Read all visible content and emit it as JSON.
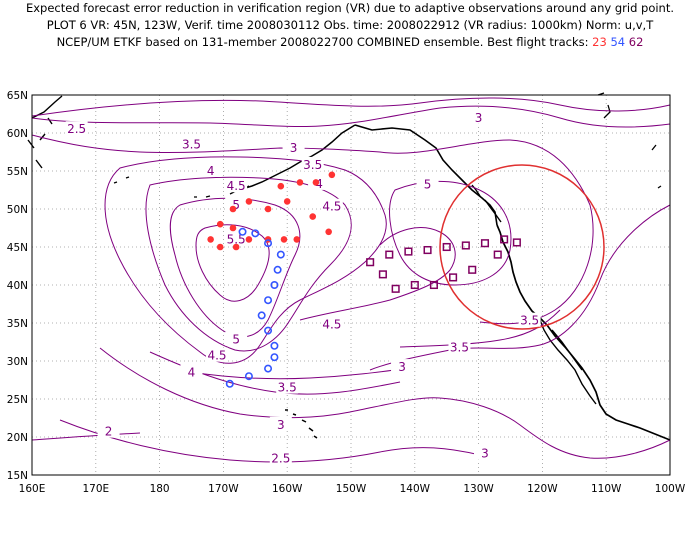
{
  "header": {
    "line1": "Expected forecast error reduction in verification region (VR) due to adaptive observations around any grid point.",
    "line2": "PLOT 6 VR: 45N, 123W, Verif. time 2008030112 Obs. time: 2008022912 (VR radius: 1000km) Norm: u,v,T",
    "line3_prefix": "NCEP/UM ETKF based on 131-member 2008022700 COMBINED ensemble.  Best flight tracks:",
    "tracks": [
      {
        "label": "23",
        "color": "#ff3333"
      },
      {
        "label": "54",
        "color": "#3355ff"
      },
      {
        "label": "62",
        "color": "#800060"
      }
    ]
  },
  "colors": {
    "contour": "#800080",
    "coast": "#000000",
    "grid": "#999999",
    "vr_circle": "#e03030"
  },
  "axes": {
    "lat_labels": [
      "65N",
      "60N",
      "55N",
      "50N",
      "45N",
      "40N",
      "35N",
      "30N",
      "25N",
      "20N",
      "15N"
    ],
    "lon_labels": [
      "160E",
      "170E",
      "180",
      "170W",
      "160W",
      "150W",
      "140W",
      "130W",
      "120W",
      "110W",
      "100W"
    ]
  },
  "verification_region": {
    "center_lat": 45,
    "center_lon": -123,
    "radius_km": 1000
  },
  "contour_labels": [
    {
      "text": "2.5",
      "lon": 167,
      "lat": 60.5
    },
    {
      "text": "3",
      "lon": -130,
      "lat": 62
    },
    {
      "text": "3.5",
      "lon": -175,
      "lat": 58.5
    },
    {
      "text": "3",
      "lon": -159,
      "lat": 58
    },
    {
      "text": "3.5",
      "lon": -156,
      "lat": 55.8
    },
    {
      "text": "4",
      "lon": -172,
      "lat": 55
    },
    {
      "text": "4",
      "lon": -155,
      "lat": 53.3
    },
    {
      "text": "4.5",
      "lon": -168,
      "lat": 53
    },
    {
      "text": "5",
      "lon": -138,
      "lat": 53.2
    },
    {
      "text": "4.5",
      "lon": -153,
      "lat": 50.3
    },
    {
      "text": "5",
      "lon": -168,
      "lat": 50.5
    },
    {
      "text": "5.5",
      "lon": -168,
      "lat": 46
    },
    {
      "text": "4.5",
      "lon": -153,
      "lat": 34.8
    },
    {
      "text": "5",
      "lon": -168,
      "lat": 32.8
    },
    {
      "text": "4.5",
      "lon": -171,
      "lat": 30.7
    },
    {
      "text": "4",
      "lon": -175,
      "lat": 28.5
    },
    {
      "text": "3.5",
      "lon": -160,
      "lat": 26.5
    },
    {
      "text": "3.5",
      "lon": -133,
      "lat": 31.8
    },
    {
      "text": "3",
      "lon": -142,
      "lat": 29.2
    },
    {
      "text": "3.5",
      "lon": -122,
      "lat": 35.3
    },
    {
      "text": "3",
      "lon": -161,
      "lat": 21.6
    },
    {
      "text": "2.5",
      "lon": -161,
      "lat": 17.2
    },
    {
      "text": "2",
      "lon": 172,
      "lat": 20.7
    },
    {
      "text": "3",
      "lon": -129,
      "lat": 17.8
    }
  ],
  "tracks": {
    "red": [
      [
        -166,
        51
      ],
      [
        -163,
        50
      ],
      [
        -160,
        51
      ],
      [
        -156,
        49
      ],
      [
        -153.5,
        47
      ],
      [
        -158.5,
        46
      ],
      [
        -160.5,
        46
      ],
      [
        -163,
        46
      ],
      [
        -166,
        46
      ],
      [
        -168,
        45
      ],
      [
        -170.5,
        45
      ],
      [
        -172,
        46
      ],
      [
        -170.5,
        48
      ],
      [
        -168.5,
        47.5
      ],
      [
        -168.5,
        50
      ],
      [
        -161,
        53
      ],
      [
        -158,
        53.5
      ],
      [
        -155.5,
        53.5
      ],
      [
        -153,
        54.5
      ]
    ],
    "blue": [
      [
        -167,
        47
      ],
      [
        -165,
        46.8
      ],
      [
        -163,
        45.5
      ],
      [
        -161,
        44
      ],
      [
        -161.5,
        42
      ],
      [
        -162,
        40
      ],
      [
        -163,
        38
      ],
      [
        -164,
        36
      ],
      [
        -163,
        34
      ],
      [
        -162,
        32
      ],
      [
        -162,
        30.5
      ],
      [
        -163,
        29
      ],
      [
        -166,
        28
      ],
      [
        -169,
        27
      ]
    ],
    "purple": [
      [
        -147,
        43
      ],
      [
        -144,
        44
      ],
      [
        -141,
        44.4
      ],
      [
        -138,
        44.6
      ],
      [
        -135,
        45
      ],
      [
        -132,
        45.2
      ],
      [
        -129,
        45.5
      ],
      [
        -126,
        46
      ],
      [
        -124,
        45.6
      ],
      [
        -127,
        44
      ],
      [
        -131,
        42
      ],
      [
        -134,
        41
      ],
      [
        -137,
        40
      ],
      [
        -140,
        40
      ],
      [
        -143,
        39.5
      ],
      [
        -145,
        41.4
      ]
    ]
  }
}
